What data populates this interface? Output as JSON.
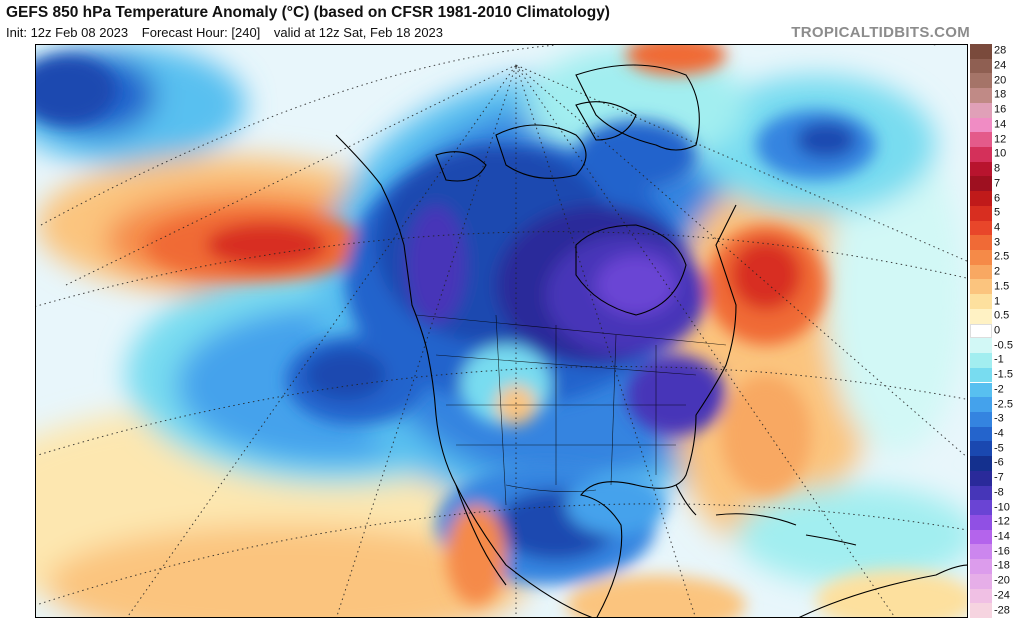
{
  "header": {
    "title": "GEFS 850 hPa Temperature Anomaly (°C) (based on CFSR 1981-2010 Climatology)",
    "init": "Init: 12z Feb 08 2023",
    "forecast_hour": "Forecast Hour: [240]",
    "valid": "valid at 12z Sat, Feb 18 2023"
  },
  "watermark": "TROPICALTIDBITS.COM",
  "colorbar": {
    "items": [
      {
        "label": "28",
        "color": "#7a4a3c"
      },
      {
        "label": "24",
        "color": "#8f5f52"
      },
      {
        "label": "20",
        "color": "#a57468"
      },
      {
        "label": "18",
        "color": "#c08a86"
      },
      {
        "label": "16",
        "color": "#e0a0b8"
      },
      {
        "label": "14",
        "color": "#f08cc4"
      },
      {
        "label": "12",
        "color": "#e45a8a"
      },
      {
        "label": "10",
        "color": "#d4305a"
      },
      {
        "label": "8",
        "color": "#b8142e"
      },
      {
        "label": "7",
        "color": "#9e1020"
      },
      {
        "label": "6",
        "color": "#c01a1a"
      },
      {
        "label": "5",
        "color": "#d82e20"
      },
      {
        "label": "4",
        "color": "#e8462a"
      },
      {
        "label": "3",
        "color": "#f06a36"
      },
      {
        "label": "2.5",
        "color": "#f58a48"
      },
      {
        "label": "2",
        "color": "#f8a862"
      },
      {
        "label": "1.5",
        "color": "#fbc47e"
      },
      {
        "label": "1",
        "color": "#fde09e"
      },
      {
        "label": "0.5",
        "color": "#fff2c4"
      },
      {
        "label": "0",
        "color": "#ffffff"
      },
      {
        "label": "-0.5",
        "color": "#d2f8f6"
      },
      {
        "label": "-1",
        "color": "#a2eef0"
      },
      {
        "label": "-1.5",
        "color": "#78dcf0"
      },
      {
        "label": "-2",
        "color": "#58c0f0"
      },
      {
        "label": "-2.5",
        "color": "#44a2ec"
      },
      {
        "label": "-3",
        "color": "#3484e0"
      },
      {
        "label": "-4",
        "color": "#2464cc"
      },
      {
        "label": "-5",
        "color": "#1a48b0"
      },
      {
        "label": "-6",
        "color": "#14308e"
      },
      {
        "label": "-7",
        "color": "#2a2a9a"
      },
      {
        "label": "-8",
        "color": "#4636b8"
      },
      {
        "label": "-10",
        "color": "#6a44d4"
      },
      {
        "label": "-12",
        "color": "#9050e4"
      },
      {
        "label": "-14",
        "color": "#b464ec"
      },
      {
        "label": "-16",
        "color": "#cc86ee"
      },
      {
        "label": "-18",
        "color": "#dc9cec"
      },
      {
        "label": "-20",
        "color": "#e6aee8"
      },
      {
        "label": "-24",
        "color": "#f0c0e4"
      },
      {
        "label": "-28",
        "color": "#f6d4e0"
      }
    ]
  }
}
